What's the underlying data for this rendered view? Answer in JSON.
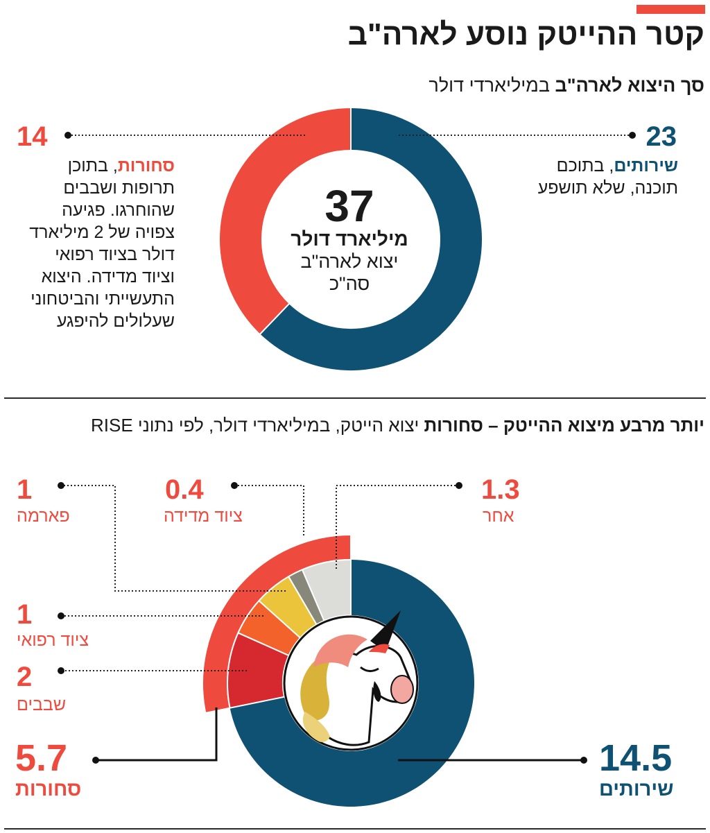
{
  "header": {
    "title": "קטר ההייטק נוסע לארה\"ב",
    "subtitle_bold": "סך היצוא לארה\"ב",
    "subtitle_rest": " במיליארדי דולר"
  },
  "colors": {
    "accent": "#ef4a3e",
    "services": "#0e5172",
    "divider": "#2a2a2a"
  },
  "chart_data": [
    {
      "type": "pie",
      "variant": "donut",
      "title": "סך היצוא לארה\"ב",
      "unit": "במיליארדי דולר",
      "slices": [
        {
          "key": "services",
          "name": "שירותים",
          "value": 23,
          "color": "#0e5172"
        },
        {
          "key": "goods",
          "name": "סחורות",
          "value": 14,
          "color": "#ef4a3e"
        }
      ],
      "center": {
        "number": "37",
        "line1": "מיליארד דולר",
        "line2": "יצוא לארה\"ב",
        "line3": "סה\"כ"
      },
      "annotations": {
        "services": {
          "value_label": "23",
          "name": "שירותים",
          "rest": ", בתוכם",
          "lines": [
            "תוכנה, שלא תושפע"
          ]
        },
        "goods": {
          "value_label": "14",
          "name": "סחורות",
          "rest": ", בתוכן",
          "lines": [
            "תרופות ושבבים",
            "שהוחרגו. פגיעה",
            "צפויה של 2 מיליארד",
            "דולר בציוד רפואי",
            "וציוד מדידה. היצוא",
            "התעשייתי והביטחוני",
            "שעלולים להיפגע"
          ]
        }
      }
    },
    {
      "type": "pie",
      "variant": "donut-with-breakdown",
      "title": "יותר מרבע מיצוא ההייטק – סחורות",
      "unit": "יצוא הייטק, במיליארדי דולר, לפי נתוני RISE",
      "slices": [
        {
          "key": "services",
          "name": "שירותים",
          "value": 14.5,
          "color": "#0e5172"
        },
        {
          "key": "goods",
          "name": "סחורות",
          "value": 5.7,
          "color": "#ef4a3e"
        }
      ],
      "goods_breakdown": [
        {
          "key": "chips",
          "name": "שבבים",
          "value": 2,
          "color": "#d6292f"
        },
        {
          "key": "medical",
          "name": "ציוד רפואי",
          "value": 1,
          "color": "#f2622a"
        },
        {
          "key": "pharma",
          "name": "פארמה",
          "value": 1,
          "color": "#ebc43b"
        },
        {
          "key": "measuring",
          "name": "ציוד מדידה",
          "value": 0.4,
          "color": "#87877a"
        },
        {
          "key": "other",
          "name": "אחר",
          "value": 1.3,
          "color": "#dcdcd8"
        }
      ],
      "labels": {
        "services": "14.5",
        "goods": "5.7",
        "chips": "2",
        "medical": "1",
        "pharma": "1",
        "measuring": "0.4",
        "other": "1.3"
      }
    }
  ],
  "section2": {
    "subtitle_bold": "יותר מרבע מיצוא ההייטק – סחורות",
    "subtitle_rest": " יצוא הייטק, במיליארדי דולר, לפי נתוני RISE"
  }
}
